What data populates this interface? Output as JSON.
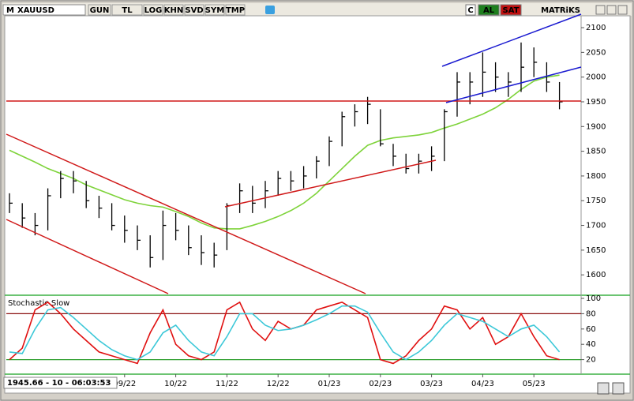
{
  "toolbar": {
    "prefix": "M",
    "symbol": "XAUUSD",
    "buttons": [
      "GUN",
      "TL",
      "LOG",
      "KHN",
      "SVD",
      "SYM",
      "TMP"
    ],
    "right": [
      "C",
      "AL",
      "SAT"
    ],
    "brand": "MATRiKS"
  },
  "status": "1945.66 - 10 - 06:03:53",
  "chart_data": [
    {
      "type": "ohlc",
      "color": "#000000",
      "high": [
        1765,
        1745,
        1725,
        1775,
        1810,
        1810,
        1790,
        1760,
        1745,
        1720,
        1700,
        1680,
        1730,
        1725,
        1700,
        1680,
        1665,
        1745,
        1785,
        1780,
        1790,
        1810,
        1810,
        1820,
        1840,
        1880,
        1930,
        1945,
        1960,
        1935,
        1865,
        1845,
        1845,
        1860,
        1935,
        2010,
        2010,
        2050,
        2030,
        2010,
        2070,
        2060,
        2030,
        1990
      ],
      "low": [
        1725,
        1695,
        1680,
        1690,
        1755,
        1765,
        1735,
        1715,
        1690,
        1665,
        1650,
        1615,
        1630,
        1670,
        1640,
        1620,
        1615,
        1650,
        1725,
        1725,
        1735,
        1760,
        1770,
        1775,
        1795,
        1820,
        1860,
        1900,
        1905,
        1860,
        1820,
        1805,
        1805,
        1810,
        1830,
        1920,
        1945,
        1960,
        1970,
        1960,
        1970,
        2000,
        1970,
        1935
      ],
      "close": [
        1745,
        1715,
        1700,
        1760,
        1795,
        1790,
        1750,
        1735,
        1700,
        1690,
        1670,
        1635,
        1700,
        1690,
        1655,
        1645,
        1640,
        1740,
        1770,
        1745,
        1770,
        1795,
        1790,
        1800,
        1830,
        1870,
        1920,
        1930,
        1945,
        1865,
        1840,
        1815,
        1830,
        1840,
        1930,
        1990,
        1990,
        2010,
        2000,
        1990,
        2020,
        2030,
        1990,
        1950
      ],
      "moving_average": {
        "color": "#7ed33a",
        "values": [
          1852,
          1840,
          1828,
          1815,
          1805,
          1795,
          1782,
          1772,
          1762,
          1752,
          1745,
          1740,
          1737,
          1728,
          1718,
          1705,
          1695,
          1693,
          1693,
          1700,
          1708,
          1718,
          1730,
          1745,
          1765,
          1790,
          1815,
          1840,
          1862,
          1872,
          1877,
          1880,
          1883,
          1888,
          1897,
          1905,
          1915,
          1925,
          1938,
          1955,
          1975,
          1992,
          2000,
          2004
        ]
      },
      "ylim": [
        1562,
        2124
      ],
      "yticks": [
        1600,
        1650,
        1700,
        1750,
        1800,
        1850,
        1900,
        1950,
        2000,
        2050,
        2100
      ],
      "grid": false
    },
    {
      "type": "line",
      "title": "Stochastic Slow",
      "categories": [
        null,
        null,
        null,
        null,
        null,
        null,
        null,
        null,
        null,
        "09/22",
        null,
        null,
        null,
        "10/22",
        null,
        null,
        null,
        "11/22",
        null,
        null,
        null,
        "12/22",
        null,
        null,
        null,
        "01/23",
        null,
        null,
        null,
        "02/23",
        null,
        null,
        null,
        "03/23",
        null,
        null,
        null,
        "04/23",
        null,
        null,
        null,
        "05/23",
        null,
        null
      ],
      "series": [
        {
          "color": "#e01010",
          "values": [
            20,
            35,
            85,
            95,
            80,
            60,
            45,
            30,
            25,
            20,
            15,
            55,
            85,
            40,
            25,
            20,
            30,
            85,
            95,
            60,
            45,
            70,
            60,
            65,
            85,
            90,
            95,
            85,
            75,
            20,
            15,
            25,
            45,
            60,
            90,
            85,
            60,
            75,
            40,
            50,
            80,
            50,
            25,
            20
          ]
        },
        {
          "color": "#3cc8d8",
          "values": [
            30,
            28,
            60,
            85,
            88,
            75,
            60,
            45,
            33,
            25,
            20,
            30,
            55,
            65,
            45,
            30,
            25,
            50,
            80,
            80,
            65,
            58,
            60,
            65,
            72,
            80,
            90,
            90,
            82,
            55,
            30,
            20,
            30,
            45,
            65,
            80,
            75,
            70,
            60,
            50,
            60,
            65,
            50,
            30
          ]
        }
      ],
      "levels": [
        {
          "value": 80,
          "color": "#8b1010"
        },
        {
          "value": 20,
          "color": "#2a9d2a"
        }
      ],
      "ylim": [
        0,
        100
      ],
      "yticks": [
        20,
        40,
        60,
        80,
        100
      ]
    }
  ]
}
